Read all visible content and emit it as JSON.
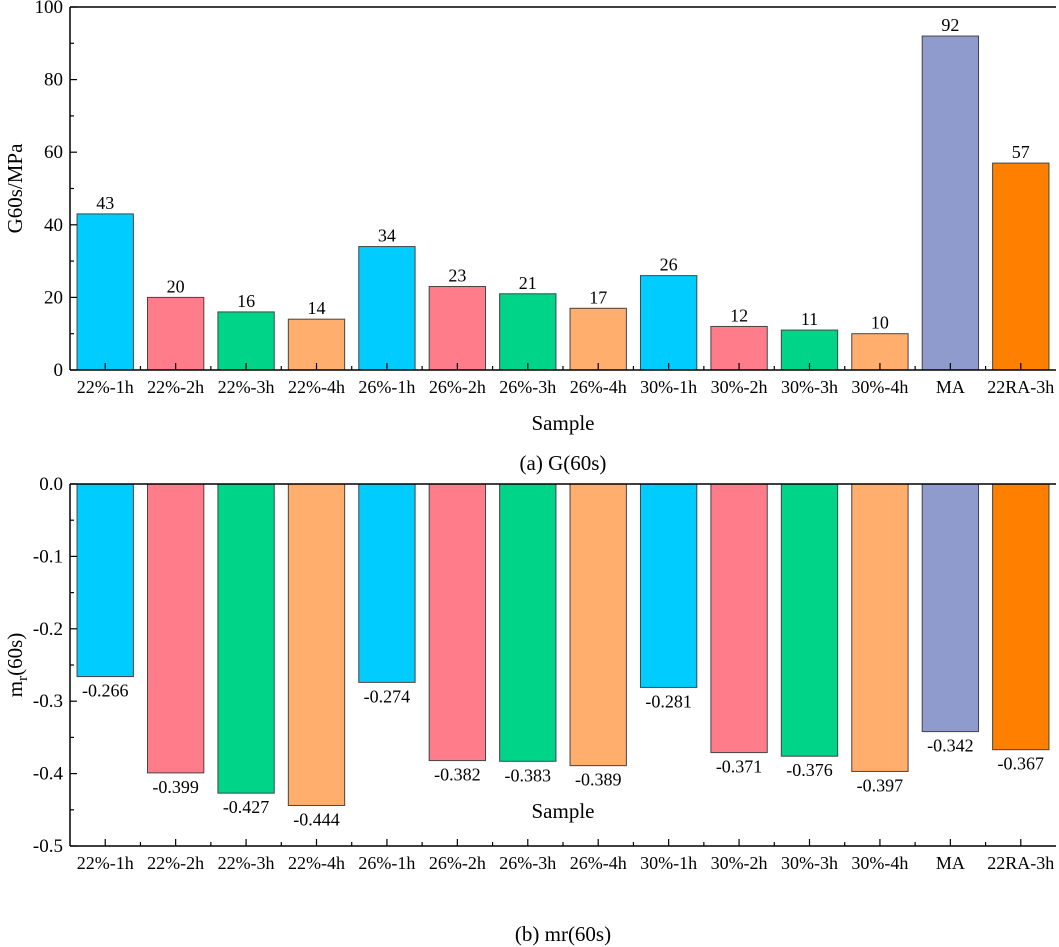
{
  "chart_data": [
    {
      "type": "bar",
      "title": "",
      "caption": "(a) G(60s)",
      "xlabel": "Sample",
      "ylabel": "G60s/MPa",
      "ylim": [
        0,
        100
      ],
      "yticks": [
        0,
        20,
        40,
        60,
        80,
        100
      ],
      "ytick_labels": [
        "0",
        "20",
        "40",
        "60",
        "80",
        "100"
      ],
      "categories": [
        "22%-1h",
        "22%-2h",
        "22%-3h",
        "22%-4h",
        "26%-1h",
        "26%-2h",
        "26%-3h",
        "26%-4h",
        "30%-1h",
        "30%-2h",
        "30%-3h",
        "30%-4h",
        "MA",
        "22RA-3h"
      ],
      "values": [
        43,
        20,
        16,
        14,
        34,
        23,
        21,
        17,
        26,
        12,
        11,
        10,
        92,
        57
      ],
      "data_labels": [
        "43",
        "20",
        "16",
        "14",
        "34",
        "23",
        "21",
        "17",
        "26",
        "12",
        "11",
        "10",
        "92",
        "57"
      ],
      "colors": [
        "#00CCFF",
        "#FF7C8A",
        "#00D488",
        "#FFAE6E",
        "#00CCFF",
        "#FF7C8A",
        "#00D488",
        "#FFAE6E",
        "#00CCFF",
        "#FF7C8A",
        "#00D488",
        "#FFAE6E",
        "#8E9BCC",
        "#FF8000"
      ],
      "grid": false
    },
    {
      "type": "bar",
      "title": "",
      "caption": "(b) mr(60s)",
      "xlabel": "Sample",
      "ylabel_main": "m",
      "ylabel_sub": "r",
      "ylabel_tail": "(60s)",
      "ylim": [
        -0.5,
        0
      ],
      "yticks": [
        0,
        -0.1,
        -0.2,
        -0.3,
        -0.4,
        -0.5
      ],
      "ytick_labels": [
        "0.0",
        "-0.1",
        "-0.2",
        "-0.3",
        "-0.4",
        "-0.5"
      ],
      "categories": [
        "22%-1h",
        "22%-2h",
        "22%-3h",
        "22%-4h",
        "26%-1h",
        "26%-2h",
        "26%-3h",
        "26%-4h",
        "30%-1h",
        "30%-2h",
        "30%-3h",
        "30%-4h",
        "MA",
        "22RA-3h"
      ],
      "values": [
        -0.266,
        -0.399,
        -0.427,
        -0.444,
        -0.274,
        -0.382,
        -0.383,
        -0.389,
        -0.281,
        -0.371,
        -0.376,
        -0.397,
        -0.342,
        -0.367
      ],
      "data_labels": [
        "-0.266",
        "-0.399",
        "-0.427",
        "-0.444",
        "-0.274",
        "-0.382",
        "-0.383",
        "-0.389",
        "-0.281",
        "-0.371",
        "-0.376",
        "-0.397",
        "-0.342",
        "-0.367"
      ],
      "colors": [
        "#00CCFF",
        "#FF7C8A",
        "#00D488",
        "#FFAE6E",
        "#00CCFF",
        "#FF7C8A",
        "#00D488",
        "#FFAE6E",
        "#00CCFF",
        "#FF7C8A",
        "#00D488",
        "#FFAE6E",
        "#8E9BCC",
        "#FF8000"
      ],
      "grid": false
    }
  ]
}
